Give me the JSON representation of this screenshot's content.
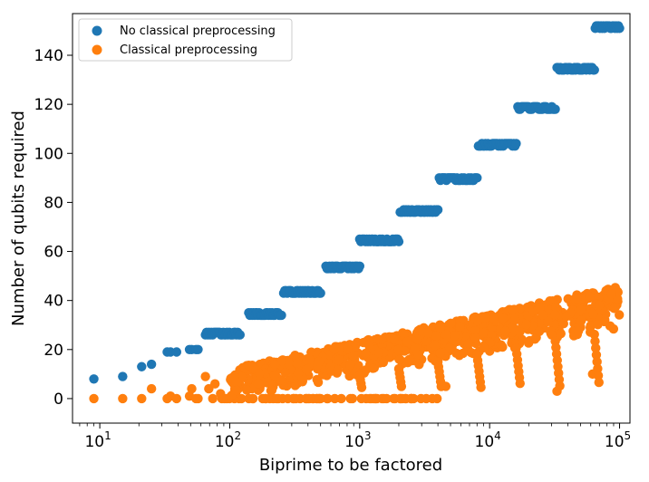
{
  "colors": {
    "series_blue": "#1f77b4",
    "series_orange": "#ff7f0e",
    "frame": "#000000",
    "legend_border": "#cccccc"
  },
  "chart_data": {
    "type": "scatter",
    "title": "",
    "xlabel": "Biprime to be factored",
    "ylabel": "Number of qubits required",
    "xscale": "log",
    "xlim_exponent": [
      0.79,
      5.08
    ],
    "ylim": [
      -10,
      157
    ],
    "grid": false,
    "legend_position": "top-left",
    "y_ticks": [
      0,
      20,
      40,
      60,
      80,
      100,
      120,
      140
    ],
    "x_ticks": [
      {
        "base": "10",
        "exp": "1",
        "value": 10
      },
      {
        "base": "10",
        "exp": "2",
        "value": 100
      },
      {
        "base": "10",
        "exp": "3",
        "value": 1000
      },
      {
        "base": "10",
        "exp": "4",
        "value": 10000
      },
      {
        "base": "10",
        "exp": "5",
        "value": 100000
      }
    ],
    "series": [
      {
        "name": "No classical preprocessing",
        "color": "#1f77b4",
        "discrete_points": [
          [
            9,
            8
          ],
          [
            15,
            9
          ],
          [
            21,
            13
          ],
          [
            25,
            14
          ],
          [
            33,
            19
          ],
          [
            35,
            19
          ],
          [
            39,
            19
          ],
          [
            49,
            20
          ],
          [
            51,
            20
          ],
          [
            55,
            20
          ],
          [
            57,
            20
          ]
        ],
        "plateaus": [
          {
            "x_from": 65,
            "x_to": 120,
            "y": 26.5,
            "note": "points between 26 and 27"
          },
          {
            "x_from": 140,
            "x_to": 250,
            "y": 34.5,
            "note": "points between 34 and 35"
          },
          {
            "x_from": 260,
            "x_to": 500,
            "y": 43.5,
            "note": "points between 43 and 44"
          },
          {
            "x_from": 550,
            "x_to": 1000,
            "y": 53.5,
            "note": "points between 53 and 54"
          },
          {
            "x_from": 1000,
            "x_to": 2000,
            "y": 64.5,
            "note": "points between 64 and 65"
          },
          {
            "x_from": 2050,
            "x_to": 4000,
            "y": 76.5,
            "note": "points between 76 and 77"
          },
          {
            "x_from": 4100,
            "x_to": 8000,
            "y": 89.5,
            "note": "points between 89 and 90"
          },
          {
            "x_from": 8200,
            "x_to": 16000,
            "y": 103.5,
            "note": "points between 103 and 104"
          },
          {
            "x_from": 16500,
            "x_to": 32000,
            "y": 118.5,
            "note": "points between 118 and 119"
          },
          {
            "x_from": 33000,
            "x_to": 64000,
            "y": 134.5,
            "note": "points between 134 and 135"
          },
          {
            "x_from": 65000,
            "x_to": 100000,
            "y": 151.5,
            "note": "points between 151 and 152"
          }
        ]
      },
      {
        "name": "Classical preprocessing",
        "color": "#ff7f0e",
        "discrete_points": [
          [
            9,
            0
          ],
          [
            15,
            0
          ],
          [
            21,
            0
          ],
          [
            25,
            4
          ],
          [
            33,
            0
          ],
          [
            35,
            1
          ],
          [
            39,
            0
          ],
          [
            49,
            1
          ],
          [
            51,
            4
          ],
          [
            55,
            0
          ],
          [
            57,
            0
          ],
          [
            65,
            9
          ],
          [
            69,
            4
          ],
          [
            74,
            0
          ],
          [
            77,
            6
          ],
          [
            85,
            2
          ],
          [
            87,
            0
          ],
          [
            91,
            0
          ],
          [
            95,
            0
          ],
          [
            100,
            0
          ],
          [
            118,
            0
          ],
          [
            123,
            0
          ],
          [
            62000,
            10
          ],
          [
            33000,
            3
          ],
          [
            4600,
            5
          ]
        ],
        "band": {
          "x_from": 100,
          "x_to": 100000,
          "upper_from": 12,
          "upper_to": 46,
          "lower_from": 0,
          "lower_to": 28,
          "note": "dense cloud of points, upper edge rising roughly linearly in log10(x)"
        },
        "zero_row": {
          "x_from": 100,
          "x_to": 4000,
          "y": 0,
          "note": "many biprimes need 0 qubits after preprocessing"
        }
      }
    ]
  },
  "legend": {
    "items": [
      {
        "label": "No classical preprocessing",
        "color": "#1f77b4"
      },
      {
        "label": "Classical preprocessing",
        "color": "#ff7f0e"
      }
    ]
  }
}
